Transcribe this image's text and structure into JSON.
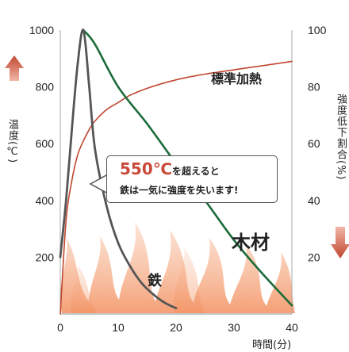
{
  "chart_data": {
    "type": "line",
    "x_axis": {
      "label": "時間(分)",
      "ticks": [
        0,
        10,
        20,
        30,
        40
      ],
      "range": [
        0,
        40
      ]
    },
    "y_axis_left": {
      "label": "温度(℃)",
      "ticks": [
        200,
        400,
        600,
        800,
        1000
      ],
      "range": [
        0,
        1000
      ]
    },
    "y_axis_right": {
      "label": "強度低下割合(%)",
      "ticks": [
        20,
        40,
        60,
        80,
        100
      ],
      "range": [
        0,
        100
      ]
    },
    "series": [
      {
        "name": "標準加熱",
        "axis": "left",
        "color": "#c0472f",
        "x": [
          0,
          1,
          2,
          3,
          4,
          5,
          6,
          8,
          10,
          12,
          15,
          20,
          25,
          30,
          35,
          40
        ],
        "y": [
          0,
          330,
          470,
          560,
          610,
          650,
          680,
          720,
          745,
          770,
          795,
          825,
          845,
          860,
          875,
          890
        ]
      },
      {
        "name": "木材",
        "axis": "right",
        "color": "#1a6b3a",
        "x": [
          4,
          6,
          10,
          15,
          20,
          25,
          30,
          35,
          40
        ],
        "y": [
          100,
          95,
          80,
          67,
          53,
          40,
          26,
          14,
          3
        ]
      },
      {
        "name": "鉄",
        "axis": "right",
        "color": "#555555",
        "x": [
          0,
          1,
          2,
          3,
          4,
          5,
          6,
          8,
          10,
          12,
          14,
          16,
          18,
          20
        ],
        "y": [
          20,
          40,
          65,
          88,
          100,
          80,
          58,
          38,
          25,
          17,
          11,
          7,
          4,
          2
        ]
      }
    ],
    "annotations": {
      "callout_big": "550℃",
      "callout_line1_tail": "を超えると",
      "callout_line2": "鉄は一気に強度を失います!"
    },
    "colors": {
      "flame": "#f6a77c",
      "up_arrow": "#c0472f",
      "down_arrow": "#c0472f"
    }
  }
}
